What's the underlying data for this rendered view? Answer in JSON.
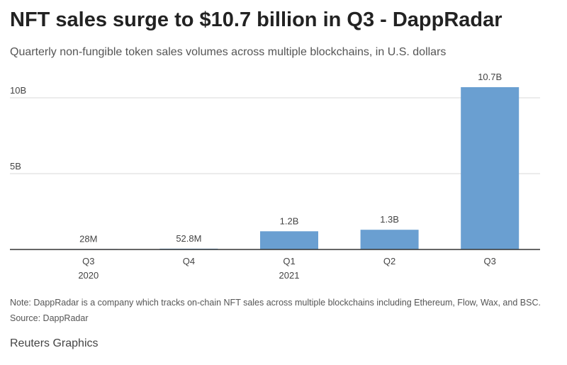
{
  "title": "NFT sales surge to $10.7 billion in Q3 - DappRadar",
  "subtitle": "Quarterly non-fungible token sales volumes across multiple blockchains, in U.S. dollars",
  "note": "Note: DappRadar is a company which tracks on-chain NFT sales across multiple blockchains including Ethereum, Flow, Wax, and BSC.",
  "source": "Source: DappRadar",
  "credit": "Reuters Graphics",
  "colors": {
    "bar": "#6a9fd1",
    "grid": "#d9d9d9",
    "axis": "#333333"
  },
  "chart_data": {
    "type": "bar",
    "title": "NFT sales surge to $10.7 billion in Q3 - DappRadar",
    "subtitle": "Quarterly non-fungible token sales volumes across multiple blockchains, in U.S. dollars",
    "categories": [
      "Q3 2020",
      "Q4 2020",
      "Q1 2021",
      "Q2 2021",
      "Q3 2021"
    ],
    "tick_labels": [
      [
        "Q3",
        "2020"
      ],
      [
        "Q4"
      ],
      [
        "Q1",
        "2021"
      ],
      [
        "Q2"
      ],
      [
        "Q3"
      ]
    ],
    "values": [
      0.028,
      0.0528,
      1.2,
      1.3,
      10.7
    ],
    "data_labels": [
      "28M",
      "52.8M",
      "1.2B",
      "1.3B",
      "10.7B"
    ],
    "value_unit": "billion USD",
    "yticks": [
      5,
      10
    ],
    "ytick_labels": [
      "5B",
      "10B"
    ],
    "ylim": [
      0,
      10.7
    ],
    "xlabel": "",
    "ylabel": "",
    "grid": true,
    "legend": "none"
  }
}
